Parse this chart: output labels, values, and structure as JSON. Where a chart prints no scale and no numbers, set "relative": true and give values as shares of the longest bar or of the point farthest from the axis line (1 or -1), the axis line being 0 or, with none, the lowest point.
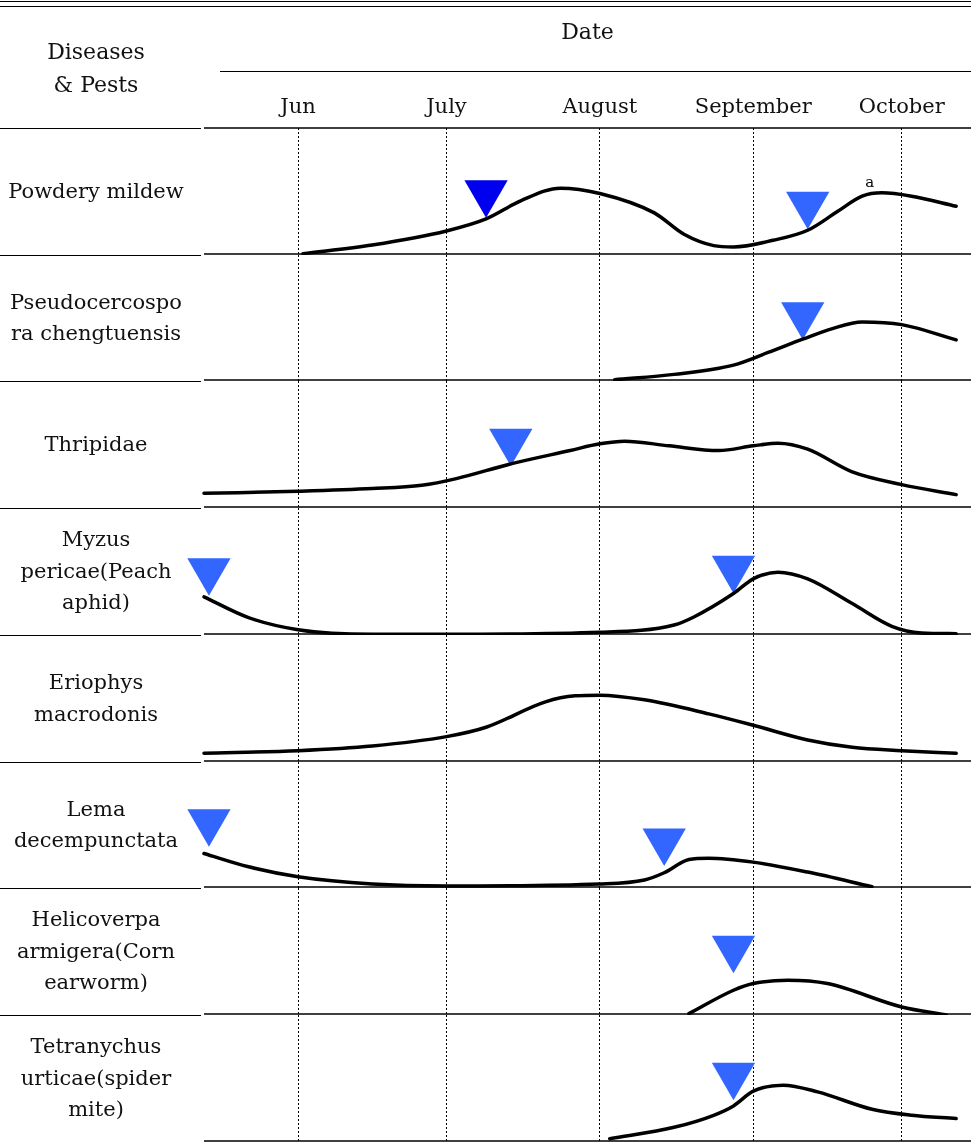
{
  "chart_data": [
    {
      "type": "line",
      "title": "Powdery mildew",
      "xlabel": "Date",
      "annotations": [
        "Diseases & Pests",
        "a"
      ],
      "relative": true,
      "xlim": [
        "--05-27",
        "--10-29"
      ],
      "xticks": [
        {
          "value": "--06-15",
          "label": "Jun"
        },
        {
          "value": "--07-15",
          "label": "July"
        },
        {
          "value": "--08-15",
          "label": "August"
        },
        {
          "value": "--09-15",
          "label": "September"
        },
        {
          "value": "--10-15",
          "label": "October"
        }
      ],
      "grid": "x",
      "tick_labels": "x",
      "series": [
        {
          "color": "#000000",
          "marker": "none",
          "x": [
            "--06-16",
            "--06-30",
            "--07-15",
            "--07-23",
            "--07-30",
            "--08-07",
            "--08-15",
            "--08-26",
            "--09-01",
            "--09-07",
            "--09-11",
            "--09-19",
            "--09-26",
            "--10-02",
            "--10-07",
            "--10-11",
            "--10-17",
            "--10-26"
          ],
          "values": [
            0.02,
            0.15,
            0.36,
            0.54,
            0.81,
            1,
            0.92,
            0.63,
            0.31,
            0.14,
            0.12,
            0.22,
            0.37,
            0.65,
            0.88,
            0.93,
            0.88,
            0.73
          ]
        },
        {
          "type": "scatter",
          "marker": "triangle",
          "colors": [
            "#0000ee",
            "#3366ff"
          ],
          "x": [
            "--07-23",
            "--09-26"
          ],
          "values": [
            0.93,
            0.76
          ]
        }
      ]
    },
    {
      "type": "line",
      "title": "Pseudocercospora chengtuensis",
      "relative": true,
      "xlim": [
        "--05-27",
        "--10-29"
      ],
      "xticks": [
        {
          "value": "--06-15",
          "label": null
        },
        {
          "value": "--07-15",
          "label": null
        },
        {
          "value": "--08-15",
          "label": null
        },
        {
          "value": "--09-15",
          "label": null
        },
        {
          "value": "--10-15",
          "label": null
        }
      ],
      "grid": "x",
      "tick_labels": false,
      "series": [
        {
          "color": "#000000",
          "marker": "none",
          "x": [
            "--08-18",
            "--08-30",
            "--09-11",
            "--09-18",
            "--09-25",
            "--10-01",
            "--10-07",
            "--10-15",
            "--10-26"
          ],
          "values": [
            0.02,
            0.1,
            0.24,
            0.43,
            0.63,
            0.79,
            0.89,
            0.85,
            0.62
          ]
        },
        {
          "type": "scatter",
          "marker": "triangle",
          "colors": [
            "#3366ff"
          ],
          "x": [
            "--09-25"
          ],
          "values": [
            1
          ]
        }
      ]
    },
    {
      "type": "line",
      "title": "Thripidae",
      "relative": true,
      "xlim": [
        "--05-27",
        "--10-29"
      ],
      "xticks": [
        {
          "value": "--06-15",
          "label": null
        },
        {
          "value": "--07-15",
          "label": null
        },
        {
          "value": "--08-15",
          "label": null
        },
        {
          "value": "--09-15",
          "label": null
        },
        {
          "value": "--10-15",
          "label": null
        }
      ],
      "grid": "x",
      "tick_labels": false,
      "series": [
        {
          "color": "#000000",
          "marker": "none",
          "x": [
            "--05-27",
            "--06-15",
            "--06-30",
            "--07-10",
            "--07-17",
            "--07-28",
            "--08-09",
            "--08-15",
            "--08-20",
            "--08-29",
            "--09-08",
            "--09-15",
            "--09-20",
            "--09-26",
            "--10-05",
            "--10-15",
            "--10-26"
          ],
          "values": [
            0.22,
            0.25,
            0.29,
            0.34,
            0.44,
            0.66,
            0.86,
            0.96,
            1,
            0.93,
            0.86,
            0.93,
            0.97,
            0.88,
            0.54,
            0.35,
            0.2
          ]
        },
        {
          "type": "scatter",
          "marker": "triangle",
          "colors": [
            "#3366ff"
          ],
          "x": [
            "--07-28"
          ],
          "values": [
            1
          ]
        }
      ]
    },
    {
      "type": "line",
      "title": "Myzus pericae(Peach aphid)",
      "relative": true,
      "xlim": [
        "--05-27",
        "--10-29"
      ],
      "xticks": [
        {
          "value": "--06-15",
          "label": null
        },
        {
          "value": "--07-15",
          "label": null
        },
        {
          "value": "--08-15",
          "label": null
        },
        {
          "value": "--09-15",
          "label": null
        },
        {
          "value": "--10-15",
          "label": null
        }
      ],
      "grid": "x",
      "tick_labels": false,
      "series": [
        {
          "color": "#000000",
          "marker": "none",
          "x": [
            "--05-27",
            "--06-05",
            "--06-15",
            "--06-30",
            "--07-15",
            "--08-15",
            "--08-30",
            "--09-03",
            "--09-11",
            "--09-15",
            "--09-20",
            "--09-26",
            "--10-05",
            "--10-13",
            "--10-19",
            "--10-26"
          ],
          "values": [
            0.57,
            0.26,
            0.08,
            0.01,
            0.01,
            0.04,
            0.15,
            0.27,
            0.62,
            0.84,
            0.94,
            0.84,
            0.47,
            0.13,
            0.03,
            0.02
          ]
        },
        {
          "type": "scatter",
          "marker": "triangle",
          "colors": [
            "#3366ff",
            "#3366ff"
          ],
          "x": [
            "--05-28",
            "--09-11"
          ],
          "values": [
            0.96,
            1
          ]
        }
      ]
    },
    {
      "type": "line",
      "title": "Eriophys macrodonis",
      "relative": true,
      "xlim": [
        "--05-27",
        "--10-29"
      ],
      "xticks": [
        {
          "value": "--06-15",
          "label": null
        },
        {
          "value": "--07-15",
          "label": null
        },
        {
          "value": "--08-15",
          "label": null
        },
        {
          "value": "--09-15",
          "label": null
        },
        {
          "value": "--10-15",
          "label": null
        }
      ],
      "grid": "x",
      "tick_labels": false,
      "series": [
        {
          "color": "#000000",
          "marker": "none",
          "x": [
            "--05-27",
            "--06-15",
            "--06-30",
            "--07-15",
            "--07-23",
            "--08-04",
            "--08-10",
            "--08-15",
            "--08-24",
            "--09-06",
            "--09-15",
            "--09-26",
            "--10-05",
            "--10-15",
            "--10-26"
          ],
          "values": [
            0.13,
            0.17,
            0.24,
            0.38,
            0.52,
            0.9,
            0.99,
            1,
            0.93,
            0.72,
            0.55,
            0.33,
            0.22,
            0.17,
            0.13
          ]
        }
      ]
    },
    {
      "type": "line",
      "title": "Lema decempunctata",
      "relative": true,
      "xlim": [
        "--05-27",
        "--10-29"
      ],
      "xticks": [
        {
          "value": "--06-15",
          "label": null
        },
        {
          "value": "--07-15",
          "label": null
        },
        {
          "value": "--08-15",
          "label": null
        },
        {
          "value": "--09-15",
          "label": null
        },
        {
          "value": "--10-15",
          "label": null
        }
      ],
      "grid": "x",
      "tick_labels": false,
      "series": [
        {
          "color": "#000000",
          "marker": "none",
          "x": [
            "--05-27",
            "--06-05",
            "--06-15",
            "--06-30",
            "--07-15",
            "--08-15",
            "--08-24",
            "--08-28",
            "--09-02",
            "--09-06",
            "--09-15",
            "--09-26",
            "--10-09"
          ],
          "values": [
            0.52,
            0.32,
            0.17,
            0.06,
            0.03,
            0.06,
            0.12,
            0.23,
            0.43,
            0.45,
            0.39,
            0.24,
            0.02
          ]
        },
        {
          "type": "scatter",
          "marker": "triangle",
          "colors": [
            "#3366ff",
            "#3366ff"
          ],
          "x": [
            "--05-28",
            "--08-28"
          ],
          "values": [
            1,
            0.71
          ]
        }
      ]
    },
    {
      "type": "line",
      "title": "Helicoverpa armigera(Corn earworm)",
      "relative": true,
      "xlim": [
        "--05-27",
        "--10-29"
      ],
      "xticks": [
        {
          "value": "--06-15",
          "label": null
        },
        {
          "value": "--07-15",
          "label": null
        },
        {
          "value": "--08-15",
          "label": null
        },
        {
          "value": "--09-15",
          "label": null
        },
        {
          "value": "--10-15",
          "label": null
        }
      ],
      "grid": "x",
      "tick_labels": false,
      "series": [
        {
          "color": "#000000",
          "marker": "none",
          "x": [
            "--09-02",
            "--09-11",
            "--09-15",
            "--09-22",
            "--09-30",
            "--10-15",
            "--10-24"
          ],
          "values": [
            0.02,
            0.37,
            0.47,
            0.52,
            0.47,
            0.12,
            0
          ]
        },
        {
          "type": "scatter",
          "marker": "triangle",
          "colors": [
            "#3366ff"
          ],
          "x": [
            "--09-11"
          ],
          "values": [
            1
          ]
        }
      ]
    },
    {
      "type": "line",
      "title": "Tetranychus urticae(spider mite)",
      "relative": true,
      "xlim": [
        "--05-27",
        "--10-29"
      ],
      "xticks": [
        {
          "value": "--06-15",
          "label": null
        },
        {
          "value": "--07-15",
          "label": null
        },
        {
          "value": "--08-15",
          "label": null
        },
        {
          "value": "--09-15",
          "label": null
        },
        {
          "value": "--10-15",
          "label": null
        }
      ],
      "grid": "x",
      "tick_labels": false,
      "series": [
        {
          "color": "#000000",
          "marker": "none",
          "x": [
            "--08-17",
            "--08-30",
            "--09-07",
            "--09-11",
            "--09-15",
            "--09-21",
            "--09-28",
            "--10-09",
            "--10-17",
            "--10-26"
          ],
          "values": [
            0.05,
            0.22,
            0.4,
            0.54,
            0.76,
            0.85,
            0.75,
            0.49,
            0.4,
            0.35
          ]
        },
        {
          "type": "scatter",
          "marker": "triangle",
          "colors": [
            "#3366ff"
          ],
          "x": [
            "--09-11"
          ],
          "values": [
            1
          ]
        }
      ]
    }
  ]
}
